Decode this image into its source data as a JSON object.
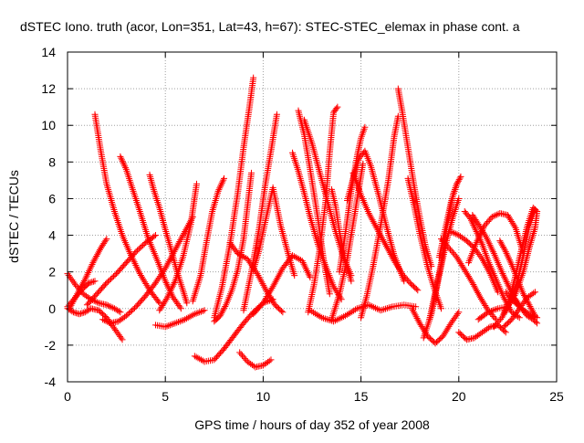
{
  "chart_data": {
    "type": "scatter",
    "title": "dSTEC Iono. truth (acor, Lon=351, Lat=43, h=67): STEC-STEC_elemax in phase cont. a",
    "xlabel": "GPS time / hours of day 352 of year 2008",
    "ylabel": "dSTEC  / TECUs",
    "xlim": [
      0,
      25
    ],
    "ylim": [
      -4,
      14
    ],
    "xticks": [
      0,
      5,
      10,
      15,
      20,
      25
    ],
    "xtick_labels": [
      "0",
      "5",
      "10",
      "15",
      "20",
      "25"
    ],
    "yticks": [
      -4,
      -2,
      0,
      2,
      4,
      6,
      8,
      10,
      12,
      14
    ],
    "ytick_labels": [
      "-4",
      "-2",
      "0",
      "2",
      "4",
      "6",
      "8",
      "10",
      "12",
      "14"
    ],
    "grid": true,
    "grid_style": "dotted",
    "marker": "+",
    "color": "#ff0000",
    "series": [
      {
        "x": [
          0.0,
          0.4,
          0.8,
          1.2,
          1.6,
          2.0,
          2.4,
          2.7
        ],
        "y": [
          1.9,
          1.3,
          0.8,
          0.5,
          0.3,
          0.2,
          0.0,
          -0.2
        ]
      },
      {
        "x": [
          0.0,
          0.3,
          0.6,
          0.9,
          1.2,
          1.6,
          2.0,
          2.4,
          2.8
        ],
        "y": [
          0.0,
          -0.2,
          -0.3,
          -0.2,
          0.0,
          -0.1,
          -0.5,
          -1.1,
          -1.7
        ]
      },
      {
        "x": [
          0.1,
          0.5,
          0.9,
          1.3,
          1.7,
          2.0
        ],
        "y": [
          0.0,
          0.8,
          1.6,
          2.5,
          3.3,
          3.8
        ]
      },
      {
        "x": [
          0.0,
          0.4,
          0.8,
          1.1,
          1.4
        ],
        "y": [
          0.1,
          0.6,
          1.1,
          1.4,
          1.5
        ]
      },
      {
        "x": [
          1.4,
          1.7,
          2.0,
          2.4,
          2.8,
          3.2,
          3.7,
          4.2,
          4.7
        ],
        "y": [
          10.6,
          8.6,
          6.8,
          5.3,
          4.0,
          3.0,
          1.9,
          1.0,
          0.3
        ]
      },
      {
        "x": [
          1.0,
          1.5,
          2.0,
          2.5,
          3.0,
          3.5,
          4.0,
          4.5
        ],
        "y": [
          0.2,
          0.8,
          1.4,
          1.9,
          2.5,
          3.1,
          3.6,
          4.0
        ]
      },
      {
        "x": [
          2.7,
          3.0,
          3.3,
          3.7,
          4.1,
          4.6,
          5.0,
          5.4,
          5.8
        ],
        "y": [
          8.3,
          7.6,
          6.6,
          5.3,
          3.9,
          2.6,
          1.5,
          0.6,
          0.0
        ]
      },
      {
        "x": [
          1.8,
          2.2,
          2.6,
          3.0,
          3.5,
          4.0,
          4.5,
          5.0,
          5.5,
          6.0,
          6.4
        ],
        "y": [
          -0.6,
          -0.8,
          -0.7,
          -0.4,
          0.1,
          0.7,
          1.4,
          2.2,
          3.2,
          4.2,
          5.0
        ]
      },
      {
        "x": [
          4.2,
          4.4,
          4.7,
          5.0,
          5.3,
          5.6,
          5.9,
          6.1
        ],
        "y": [
          7.3,
          6.5,
          5.5,
          4.3,
          3.2,
          2.0,
          1.0,
          0.3
        ]
      },
      {
        "x": [
          4.7,
          5.1,
          5.5,
          5.9,
          6.3,
          6.6
        ],
        "y": [
          -0.1,
          0.6,
          1.5,
          2.8,
          4.6,
          6.8
        ]
      },
      {
        "x": [
          4.5,
          5.0,
          5.5,
          6.0,
          6.5,
          7.0
        ],
        "y": [
          -0.9,
          -1.0,
          -0.8,
          -0.6,
          -0.3,
          -0.1
        ]
      },
      {
        "x": [
          6.5,
          7.0,
          7.5,
          8.0,
          8.5,
          9.0,
          9.5,
          10.0,
          10.5
        ],
        "y": [
          -2.6,
          -2.9,
          -2.8,
          -2.2,
          -1.5,
          -0.8,
          -0.2,
          0.3,
          0.5
        ]
      },
      {
        "x": [
          8.8,
          9.2,
          9.6,
          10.0,
          10.4
        ],
        "y": [
          -2.4,
          -2.9,
          -3.2,
          -3.1,
          -2.8
        ]
      },
      {
        "x": [
          6.4,
          6.8,
          7.1,
          7.4,
          7.7,
          8.0
        ],
        "y": [
          0.4,
          1.8,
          3.6,
          5.3,
          6.4,
          7.1
        ]
      },
      {
        "x": [
          7.5,
          7.9,
          8.3,
          8.7,
          9.0,
          9.3,
          9.5
        ],
        "y": [
          -0.5,
          1.2,
          3.5,
          6.3,
          8.8,
          11.0,
          12.6
        ]
      },
      {
        "x": [
          8.3,
          8.7,
          9.2,
          9.7,
          10.2,
          10.6,
          11.0
        ],
        "y": [
          3.6,
          3.0,
          2.7,
          1.9,
          0.9,
          0.2,
          -0.2
        ]
      },
      {
        "x": [
          9.0,
          9.4,
          9.8,
          10.1,
          10.4,
          10.7
        ],
        "y": [
          -0.1,
          2.0,
          4.4,
          6.7,
          8.6,
          10.6
        ]
      },
      {
        "x": [
          9.5,
          9.8,
          10.1,
          10.5,
          10.9,
          11.3,
          11.6
        ],
        "y": [
          2.1,
          3.2,
          4.7,
          6.6,
          4.5,
          2.9,
          1.8
        ]
      },
      {
        "x": [
          7.5,
          7.8,
          8.1,
          8.4,
          8.7,
          9.0,
          9.2,
          9.4
        ],
        "y": [
          -0.7,
          -0.4,
          0.2,
          1.0,
          2.1,
          3.8,
          5.6,
          7.4
        ]
      },
      {
        "x": [
          9.5,
          10.0,
          10.5,
          11.0,
          11.5,
          12.0,
          12.4
        ],
        "y": [
          -0.3,
          0.3,
          1.2,
          2.2,
          2.9,
          2.6,
          1.7
        ]
      },
      {
        "x": [
          11.5,
          11.8,
          12.1,
          12.4,
          12.8,
          13.2,
          13.6,
          14.0
        ],
        "y": [
          8.5,
          7.5,
          6.3,
          5.0,
          3.5,
          2.3,
          1.2,
          0.5
        ]
      },
      {
        "x": [
          11.8,
          12.1,
          12.4,
          12.8,
          13.1,
          13.4
        ],
        "y": [
          10.8,
          9.5,
          7.6,
          4.9,
          2.6,
          0.8
        ]
      },
      {
        "x": [
          12.1,
          12.5,
          12.9,
          13.3,
          13.7,
          14.1,
          14.5
        ],
        "y": [
          10.3,
          9.0,
          7.4,
          5.8,
          4.2,
          2.8,
          1.8
        ]
      },
      {
        "x": [
          12.3,
          12.6,
          12.9,
          13.2,
          13.4,
          13.6,
          13.8
        ],
        "y": [
          -0.2,
          1.3,
          3.3,
          5.9,
          8.5,
          10.7,
          11.0
        ]
      },
      {
        "x": [
          13.5,
          13.7,
          13.9,
          14.2,
          14.5
        ],
        "y": [
          6.5,
          5.6,
          4.2,
          2.6,
          1.5
        ]
      },
      {
        "x": [
          13.5,
          13.9,
          14.3,
          14.7,
          15.1
        ],
        "y": [
          -0.6,
          0.8,
          2.7,
          5.3,
          7.9
        ]
      },
      {
        "x": [
          13.9,
          14.2,
          14.5,
          14.8,
          15.0,
          15.2
        ],
        "y": [
          2.0,
          4.1,
          6.4,
          8.3,
          9.3,
          9.9
        ]
      },
      {
        "x": [
          14.3,
          14.6,
          14.9,
          15.2,
          15.5,
          15.9,
          16.3,
          16.7,
          17.2
        ],
        "y": [
          5.9,
          7.1,
          8.2,
          8.6,
          7.8,
          6.2,
          4.5,
          2.9,
          1.5
        ]
      },
      {
        "x": [
          14.6,
          15.0,
          15.4,
          15.9,
          16.3,
          16.7,
          17.1,
          17.5,
          17.9
        ],
        "y": [
          7.4,
          6.2,
          5.2,
          4.2,
          3.4,
          2.6,
          1.9,
          1.4,
          1.0
        ]
      },
      {
        "x": [
          15.0,
          15.3,
          15.6,
          16.0,
          16.4,
          16.7,
          16.9
        ],
        "y": [
          -0.5,
          0.7,
          2.2,
          4.5,
          7.0,
          9.4,
          10.5
        ]
      },
      {
        "x": [
          16.9,
          17.1,
          17.4,
          17.7,
          18.0,
          18.3,
          18.6
        ],
        "y": [
          12.0,
          10.8,
          8.8,
          6.8,
          5.0,
          3.4,
          2.3
        ]
      },
      {
        "x": [
          17.4,
          17.7,
          18.0,
          18.4,
          18.8,
          19.1
        ],
        "y": [
          7.1,
          5.7,
          4.1,
          2.3,
          0.9,
          0.0
        ]
      },
      {
        "x": [
          12.4,
          13.0,
          13.6,
          14.2,
          14.8,
          15.4,
          16.0,
          16.6,
          17.2,
          17.8
        ],
        "y": [
          -0.1,
          -0.5,
          -0.7,
          -0.4,
          0.0,
          0.2,
          -0.1,
          0.1,
          0.2,
          0.1
        ]
      },
      {
        "x": [
          17.6,
          18.0,
          18.4,
          18.8,
          19.2,
          19.6,
          20.0
        ],
        "y": [
          0.0,
          -0.8,
          -1.5,
          -1.9,
          -1.5,
          -0.8,
          -0.2
        ]
      },
      {
        "x": [
          18.2,
          18.6,
          19.0,
          19.4,
          19.7,
          20.0
        ],
        "y": [
          -1.6,
          -0.3,
          1.8,
          3.8,
          5.0,
          6.0
        ]
      },
      {
        "x": [
          18.5,
          18.8,
          19.1,
          19.4,
          19.7,
          19.9
        ],
        "y": [
          -0.6,
          0.9,
          2.5,
          4.5,
          6.2,
          6.8
        ]
      },
      {
        "x": [
          19.0,
          19.3,
          19.6,
          19.9,
          20.1
        ],
        "y": [
          2.8,
          4.3,
          5.8,
          6.8,
          7.2
        ]
      },
      {
        "x": [
          19.1,
          19.5,
          19.9,
          20.3,
          20.7,
          21.1,
          21.5,
          21.9
        ],
        "y": [
          3.8,
          3.3,
          2.8,
          2.1,
          1.4,
          0.6,
          -0.1,
          -0.6
        ]
      },
      {
        "x": [
          19.6,
          20.0,
          20.4,
          20.8,
          21.2,
          21.6,
          22.0
        ],
        "y": [
          4.2,
          4.0,
          3.7,
          3.3,
          2.7,
          1.9,
          0.9
        ]
      },
      {
        "x": [
          20.0,
          20.4,
          20.8,
          21.2,
          21.6,
          22.0,
          22.4
        ],
        "y": [
          -1.3,
          -1.7,
          -1.6,
          -1.3,
          -1.0,
          -0.9,
          -1.3
        ]
      },
      {
        "x": [
          20.3,
          20.6,
          20.9,
          21.2,
          21.5,
          21.9,
          22.3,
          22.7,
          23.1
        ],
        "y": [
          5.3,
          4.9,
          4.2,
          3.5,
          2.6,
          1.6,
          0.6,
          -0.2,
          -0.5
        ]
      },
      {
        "x": [
          20.7,
          21.0,
          21.4,
          21.8,
          22.2,
          22.6,
          23.0
        ],
        "y": [
          5.1,
          4.6,
          3.9,
          3.0,
          2.0,
          1.1,
          0.2
        ]
      },
      {
        "x": [
          20.5,
          20.9,
          21.3,
          21.7,
          22.1,
          22.5,
          22.9,
          23.3
        ],
        "y": [
          2.5,
          3.6,
          4.5,
          5.0,
          5.2,
          5.1,
          4.4,
          3.0
        ]
      },
      {
        "x": [
          21.0,
          21.5,
          22.0,
          22.5,
          22.9,
          23.3,
          23.6,
          23.9,
          24.0
        ],
        "y": [
          -0.6,
          -0.2,
          0.0,
          0.1,
          0.8,
          2.0,
          3.3,
          4.4,
          5.3
        ]
      },
      {
        "x": [
          21.8,
          22.2,
          22.6,
          23.0,
          23.3,
          23.6,
          23.9
        ],
        "y": [
          -1.0,
          -0.5,
          0.3,
          1.5,
          2.9,
          4.5,
          5.4
        ]
      },
      {
        "x": [
          22.3,
          22.6,
          22.9,
          23.2,
          23.5,
          23.8,
          24.0
        ],
        "y": [
          -0.3,
          0.5,
          1.8,
          3.2,
          4.5,
          5.5,
          5.3
        ]
      },
      {
        "x": [
          22.1,
          22.4,
          22.7,
          23.0,
          23.3,
          23.6,
          23.9
        ],
        "y": [
          3.7,
          3.1,
          2.4,
          1.6,
          0.8,
          0.2,
          -0.4
        ]
      },
      {
        "x": [
          22.4,
          22.8,
          23.2,
          23.6,
          24.0
        ],
        "y": [
          0.9,
          0.4,
          0.0,
          -0.3,
          -0.5
        ]
      },
      {
        "x": [
          22.3,
          22.7,
          23.1,
          23.5,
          23.9
        ],
        "y": [
          -1.0,
          -0.6,
          0.0,
          0.6,
          0.9
        ]
      },
      {
        "x": [
          22.9,
          23.2,
          23.5,
          23.8,
          24.0
        ],
        "y": [
          0.5,
          0.0,
          -0.4,
          -0.6,
          -0.8
        ]
      }
    ]
  }
}
